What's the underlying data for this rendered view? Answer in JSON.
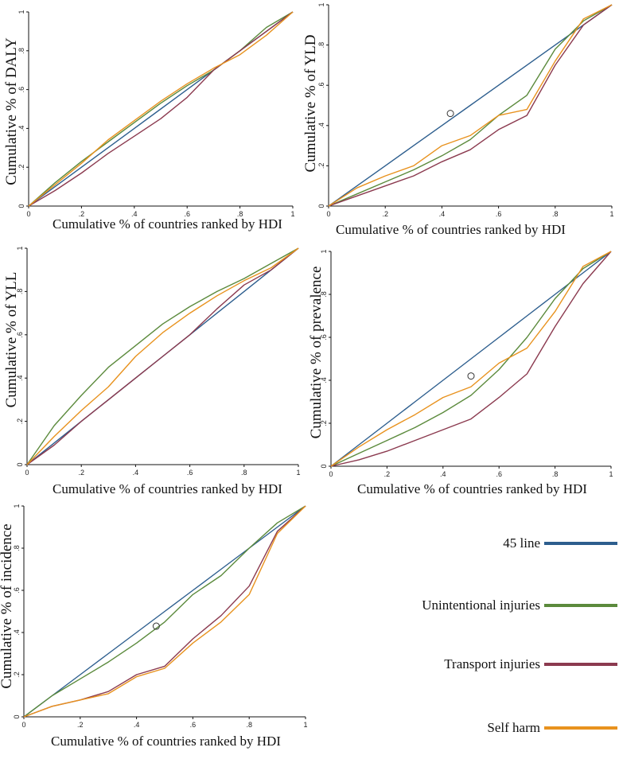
{
  "colors": {
    "line45": "#2d5e8e",
    "unintentional": "#5b8a3c",
    "transport": "#8b3a4f",
    "selfharm": "#e8921e"
  },
  "legend": {
    "items": [
      {
        "key": "line45",
        "label": "45 line"
      },
      {
        "key": "unintentional",
        "label": "Unintentional injuries"
      },
      {
        "key": "transport",
        "label": "Transport injuries"
      },
      {
        "key": "selfharm",
        "label": "Self harm"
      }
    ]
  },
  "chart_data": [
    {
      "type": "line",
      "title": "",
      "xlabel": "Cumulative % of countries ranked by HDI",
      "ylabel": "Cumulative  % of DALY",
      "x_ticks": [
        "0",
        ".2",
        ".4",
        ".6",
        ".8",
        "1"
      ],
      "y_ticks": [
        "0",
        ".2",
        ".4",
        ".6",
        ".8",
        "1"
      ],
      "xlim": [
        0,
        1
      ],
      "ylim": [
        0,
        1
      ],
      "annotation": "",
      "x": [
        0,
        0.1,
        0.2,
        0.3,
        0.4,
        0.5,
        0.6,
        0.7,
        0.8,
        0.9,
        1
      ],
      "series": [
        {
          "name": "45 line",
          "key": "line45",
          "values": [
            0,
            0.1,
            0.2,
            0.3,
            0.4,
            0.5,
            0.6,
            0.7,
            0.8,
            0.9,
            1
          ]
        },
        {
          "name": "Unintentional injuries",
          "key": "unintentional",
          "values": [
            0,
            0.12,
            0.23,
            0.33,
            0.43,
            0.53,
            0.62,
            0.7,
            0.8,
            0.92,
            1
          ]
        },
        {
          "name": "Transport injuries",
          "key": "transport",
          "values": [
            0,
            0.08,
            0.17,
            0.27,
            0.36,
            0.45,
            0.56,
            0.7,
            0.8,
            0.9,
            1
          ]
        },
        {
          "name": "Self harm",
          "key": "selfharm",
          "values": [
            0,
            0.11,
            0.22,
            0.34,
            0.44,
            0.54,
            0.63,
            0.71,
            0.78,
            0.88,
            1
          ]
        }
      ]
    },
    {
      "type": "line",
      "title": "",
      "xlabel": "Cumulative % of countries ranked by HDI",
      "ylabel": "Cumulative  % of YLD",
      "x_ticks": [
        "0",
        ".2",
        ".4",
        ".6",
        ".8",
        "1"
      ],
      "y_ticks": [
        "0",
        ".2",
        ".4",
        ".6",
        ".8",
        "1"
      ],
      "xlim": [
        0,
        1
      ],
      "ylim": [
        0,
        1
      ],
      "annotation": "O",
      "annotation_at": [
        0.43,
        0.46
      ],
      "x": [
        0,
        0.1,
        0.2,
        0.3,
        0.4,
        0.5,
        0.6,
        0.7,
        0.8,
        0.9,
        1
      ],
      "series": [
        {
          "name": "45 line",
          "key": "line45",
          "values": [
            0,
            0.1,
            0.2,
            0.3,
            0.4,
            0.5,
            0.6,
            0.7,
            0.8,
            0.9,
            1
          ]
        },
        {
          "name": "Unintentional injuries",
          "key": "unintentional",
          "values": [
            0,
            0.06,
            0.12,
            0.18,
            0.25,
            0.33,
            0.45,
            0.55,
            0.78,
            0.92,
            1
          ]
        },
        {
          "name": "Transport injuries",
          "key": "transport",
          "values": [
            0,
            0.05,
            0.1,
            0.15,
            0.22,
            0.28,
            0.38,
            0.45,
            0.7,
            0.9,
            1
          ]
        },
        {
          "name": "Self harm",
          "key": "selfharm",
          "values": [
            0,
            0.09,
            0.15,
            0.2,
            0.3,
            0.35,
            0.45,
            0.48,
            0.72,
            0.93,
            1
          ]
        }
      ]
    },
    {
      "type": "line",
      "title": "",
      "xlabel": "Cumulative % of countries ranked by HDI",
      "ylabel": "Cumulative  % of YLL",
      "x_ticks": [
        "0",
        ".2",
        ".4",
        ".6",
        ".8",
        "1"
      ],
      "y_ticks": [
        "0",
        ".2",
        ".4",
        ".6",
        ".8",
        "1"
      ],
      "xlim": [
        0,
        1
      ],
      "ylim": [
        0,
        1
      ],
      "annotation": "",
      "x": [
        0,
        0.1,
        0.2,
        0.3,
        0.4,
        0.5,
        0.6,
        0.7,
        0.8,
        0.9,
        1
      ],
      "series": [
        {
          "name": "45 line",
          "key": "line45",
          "values": [
            0,
            0.1,
            0.2,
            0.3,
            0.4,
            0.5,
            0.6,
            0.7,
            0.8,
            0.9,
            1
          ]
        },
        {
          "name": "Unintentional injuries",
          "key": "unintentional",
          "values": [
            0,
            0.18,
            0.32,
            0.45,
            0.55,
            0.65,
            0.73,
            0.8,
            0.86,
            0.93,
            1
          ]
        },
        {
          "name": "Transport injuries",
          "key": "transport",
          "values": [
            0,
            0.09,
            0.2,
            0.3,
            0.4,
            0.5,
            0.6,
            0.72,
            0.83,
            0.9,
            1
          ]
        },
        {
          "name": "Self harm",
          "key": "selfharm",
          "values": [
            0,
            0.13,
            0.25,
            0.36,
            0.5,
            0.61,
            0.7,
            0.78,
            0.85,
            0.91,
            1
          ]
        }
      ]
    },
    {
      "type": "line",
      "title": "",
      "xlabel": "Cumulative % of countries ranked by HDI",
      "ylabel": "Cumulative % of prevalence",
      "x_ticks": [
        "0",
        ".2",
        ".4",
        ".6",
        ".8",
        "1"
      ],
      "y_ticks": [
        "0",
        ".2",
        ".4",
        ".6",
        ".8",
        "1"
      ],
      "xlim": [
        0,
        1
      ],
      "ylim": [
        0,
        1
      ],
      "annotation": "O",
      "annotation_at": [
        0.5,
        0.42
      ],
      "x": [
        0,
        0.1,
        0.2,
        0.3,
        0.4,
        0.5,
        0.6,
        0.7,
        0.8,
        0.9,
        1
      ],
      "series": [
        {
          "name": "45 line",
          "key": "line45",
          "values": [
            0,
            0.1,
            0.2,
            0.3,
            0.4,
            0.5,
            0.6,
            0.7,
            0.8,
            0.9,
            1
          ]
        },
        {
          "name": "Unintentional injuries",
          "key": "unintentional",
          "values": [
            0,
            0.06,
            0.12,
            0.18,
            0.25,
            0.33,
            0.45,
            0.6,
            0.78,
            0.92,
            1
          ]
        },
        {
          "name": "Transport injuries",
          "key": "transport",
          "values": [
            0,
            0.03,
            0.07,
            0.12,
            0.17,
            0.22,
            0.32,
            0.43,
            0.65,
            0.85,
            1
          ]
        },
        {
          "name": "Self harm",
          "key": "selfharm",
          "values": [
            0,
            0.09,
            0.17,
            0.24,
            0.32,
            0.37,
            0.48,
            0.55,
            0.72,
            0.93,
            1
          ]
        }
      ]
    },
    {
      "type": "line",
      "title": "",
      "xlabel": "Cumulative % of countries ranked by HDI",
      "ylabel": "Cumulative  % of incidence",
      "x_ticks": [
        "0",
        ".2",
        ".4",
        ".6",
        ".8",
        "1"
      ],
      "y_ticks": [
        "0",
        ".2",
        ".4",
        ".6",
        ".8",
        "1"
      ],
      "xlim": [
        0,
        1
      ],
      "ylim": [
        0,
        1
      ],
      "annotation": "O",
      "annotation_at": [
        0.47,
        0.43
      ],
      "x": [
        0,
        0.1,
        0.2,
        0.3,
        0.4,
        0.5,
        0.6,
        0.7,
        0.8,
        0.9,
        1
      ],
      "series": [
        {
          "name": "45 line",
          "key": "line45",
          "values": [
            0,
            0.1,
            0.2,
            0.3,
            0.4,
            0.5,
            0.6,
            0.7,
            0.8,
            0.9,
            1
          ]
        },
        {
          "name": "Unintentional injuries",
          "key": "unintentional",
          "values": [
            0,
            0.1,
            0.18,
            0.26,
            0.35,
            0.45,
            0.58,
            0.67,
            0.8,
            0.92,
            1
          ]
        },
        {
          "name": "Transport injuries",
          "key": "transport",
          "values": [
            0,
            0.05,
            0.08,
            0.12,
            0.2,
            0.24,
            0.37,
            0.48,
            0.62,
            0.88,
            1
          ]
        },
        {
          "name": "Self harm",
          "key": "selfharm",
          "values": [
            0,
            0.05,
            0.08,
            0.11,
            0.19,
            0.23,
            0.35,
            0.45,
            0.58,
            0.87,
            1
          ]
        }
      ]
    }
  ]
}
